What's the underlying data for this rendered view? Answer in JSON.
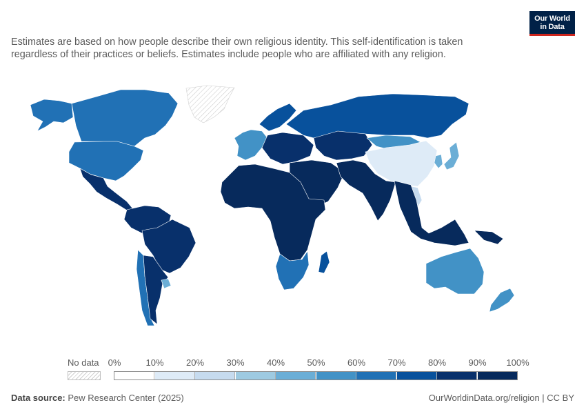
{
  "header": {
    "subtitle": "Estimates are based on how people describe their own religious identity. This self-identification is taken regardless of their practices or beliefs. Estimates include people who are affiliated with any religion.",
    "logo_line1": "Our World",
    "logo_line2": "in Data"
  },
  "colors": {
    "brand_navy": "#002147",
    "brand_red": "#ce261e",
    "no_data": "#e6e6e6"
  },
  "legend": {
    "no_data_label": "No data",
    "ticks": [
      "0%",
      "10%",
      "20%",
      "30%",
      "40%",
      "50%",
      "60%",
      "70%",
      "80%",
      "90%",
      "100%"
    ],
    "bins": [
      {
        "range": "0-10%",
        "color": "#ffffff"
      },
      {
        "range": "10-20%",
        "color": "#deebf7"
      },
      {
        "range": "20-30%",
        "color": "#c6dbef"
      },
      {
        "range": "30-40%",
        "color": "#9ecae1"
      },
      {
        "range": "40-50%",
        "color": "#6baed6"
      },
      {
        "range": "50-60%",
        "color": "#4292c6"
      },
      {
        "range": "60-70%",
        "color": "#2171b5"
      },
      {
        "range": "70-80%",
        "color": "#08519c"
      },
      {
        "range": "80-90%",
        "color": "#08306b"
      },
      {
        "range": "90-100%",
        "color": "#072a5c"
      }
    ]
  },
  "map": {
    "regions": [
      {
        "name": "Greenland",
        "bin": "no data"
      },
      {
        "name": "Alaska / USA",
        "bin": "60-70%"
      },
      {
        "name": "Canada",
        "bin": "60-70%"
      },
      {
        "name": "United States",
        "bin": "60-70%"
      },
      {
        "name": "Mexico & Central America",
        "bin": "80-90%"
      },
      {
        "name": "South America (north)",
        "bin": "80-90%"
      },
      {
        "name": "Brazil",
        "bin": "80-90%"
      },
      {
        "name": "Chile",
        "bin": "60-70%"
      },
      {
        "name": "Argentina",
        "bin": "80-90%"
      },
      {
        "name": "Uruguay",
        "bin": "40-50%"
      },
      {
        "name": "Western Europe",
        "bin": "50-60%"
      },
      {
        "name": "Czechia",
        "bin": "10-20%"
      },
      {
        "name": "Eastern Europe",
        "bin": "80-90%"
      },
      {
        "name": "Scandinavia",
        "bin": "70-80%"
      },
      {
        "name": "Russia",
        "bin": "70-80%"
      },
      {
        "name": "Kazakhstan & Central Asia",
        "bin": "80-90%"
      },
      {
        "name": "Mongolia",
        "bin": "50-60%"
      },
      {
        "name": "China",
        "bin": "10-20%"
      },
      {
        "name": "Korea",
        "bin": "40-50%"
      },
      {
        "name": "Japan",
        "bin": "40-50%"
      },
      {
        "name": "Vietnam",
        "bin": "20-30%"
      },
      {
        "name": "Middle East",
        "bin": "90-100%"
      },
      {
        "name": "India & South Asia",
        "bin": "90-100%"
      },
      {
        "name": "Southeast Asia",
        "bin": "90-100%"
      },
      {
        "name": "Africa",
        "bin": "90-100%"
      },
      {
        "name": "Southern Africa",
        "bin": "60-70%"
      },
      {
        "name": "Madagascar",
        "bin": "70-80%"
      },
      {
        "name": "Australia",
        "bin": "50-60%"
      },
      {
        "name": "New Zealand",
        "bin": "50-60%"
      },
      {
        "name": "Papua New Guinea",
        "bin": "90-100%"
      }
    ]
  },
  "footer": {
    "source_label": "Data source:",
    "source_value": "Pew Research Center (2025)",
    "link": "OurWorldinData.org/religion | CC BY"
  }
}
